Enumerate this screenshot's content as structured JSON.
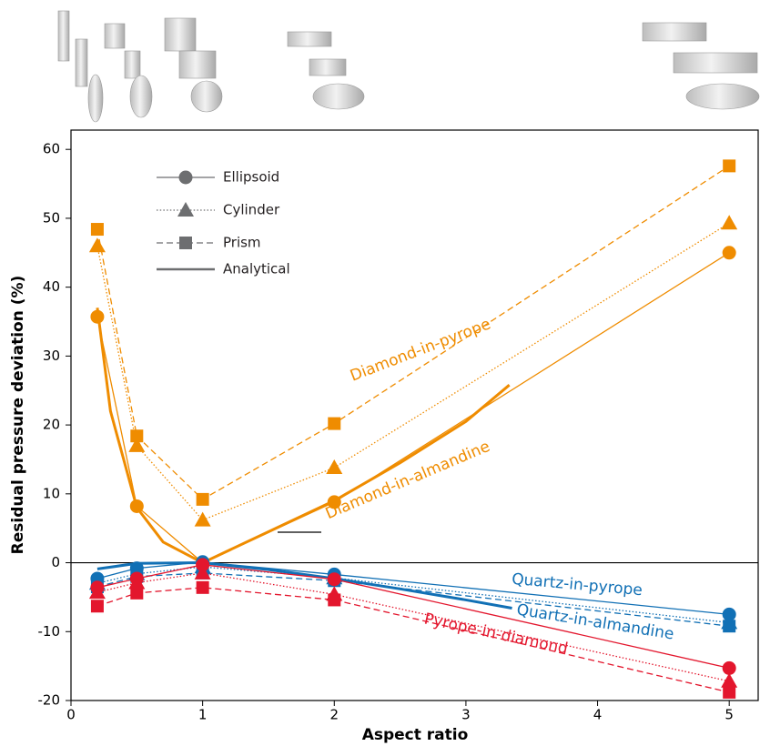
{
  "chart_data": {
    "type": "line",
    "x_label": "Aspect ratio",
    "y_label": "Residual pressure deviation (%)",
    "xlim": [
      0,
      5.22
    ],
    "ylim": [
      -20,
      62.8
    ],
    "xticks": [
      0,
      1,
      2,
      3,
      4,
      5
    ],
    "yticks": [
      -20,
      -10,
      0,
      10,
      20,
      30,
      40,
      50,
      60
    ],
    "legend": {
      "position": "upper left",
      "color": "#6d6e70",
      "entries": [
        {
          "label": "Ellipsoid",
          "marker": "circle",
          "dash": "solid"
        },
        {
          "label": "Cylinder",
          "marker": "triangle",
          "dash": "dotted"
        },
        {
          "label": "Prism",
          "marker": "square",
          "dash": "dashed"
        },
        {
          "label": "Analytical",
          "marker": "none",
          "dash": "thick"
        }
      ]
    },
    "annotations": [
      {
        "text": "Diamond-in-pyrope",
        "color": "#ef8c00"
      },
      {
        "text": "Diamond-in-almandine",
        "color": "#ef8c00"
      },
      {
        "text": "Quartz-in-pyrope",
        "color": "#1170b5"
      },
      {
        "text": "Quartz-in-almandine",
        "color": "#1170b5"
      },
      {
        "text": "Pyrope-in-diamond",
        "color": "#e3162d"
      }
    ],
    "series": [
      {
        "color": "#ef8c00",
        "marker": "circle",
        "dash": "solid",
        "x": [
          0.2,
          0.5,
          1,
          2,
          5
        ],
        "values": [
          35.7,
          8.2,
          0,
          8.8,
          45
        ]
      },
      {
        "color": "#ef8c00",
        "marker": "triangle",
        "dash": "dotted",
        "x": [
          0.2,
          0.5,
          1,
          2,
          5
        ],
        "values": [
          46,
          17,
          6.2,
          13.8,
          49.3
        ]
      },
      {
        "color": "#ef8c00",
        "marker": "square",
        "dash": "dashed",
        "x": [
          0.2,
          0.5,
          1,
          2,
          5
        ],
        "values": [
          48.4,
          18.4,
          9.2,
          20.2,
          57.6
        ]
      },
      {
        "color": "#ef8c00",
        "marker": "none",
        "dash": "thick",
        "x": [
          0.2,
          0.3,
          0.5,
          0.7,
          1,
          1.5,
          2,
          2.5,
          3,
          3.33
        ],
        "values": [
          37,
          22,
          8,
          3,
          0,
          4.5,
          9,
          14.5,
          20.5,
          25.8
        ]
      },
      {
        "color": "#1170b5",
        "marker": "circle",
        "dash": "solid",
        "x": [
          0.2,
          0.5,
          1,
          2,
          5
        ],
        "values": [
          -2.3,
          -0.8,
          0.1,
          -1.7,
          -7.5
        ]
      },
      {
        "color": "#1170b5",
        "marker": "triangle",
        "dash": "dotted",
        "x": [
          0.2,
          0.5,
          1,
          2,
          5
        ],
        "values": [
          -3,
          -1.6,
          -0.6,
          -2.2,
          -8.7
        ]
      },
      {
        "color": "#1170b5",
        "marker": "square",
        "dash": "dashed",
        "x": [
          0.2,
          0.5,
          1,
          2,
          5
        ],
        "values": [
          -3.5,
          -2,
          -1.5,
          -2.6,
          -9.2
        ]
      },
      {
        "color": "#1170b5",
        "marker": "none",
        "dash": "thick",
        "x": [
          0.2,
          0.5,
          1,
          1.5,
          2,
          2.5,
          3,
          3.35
        ],
        "values": [
          -0.9,
          -0.1,
          0,
          -1,
          -2.3,
          -3.8,
          -5.4,
          -6.6
        ]
      },
      {
        "color": "#e3162d",
        "marker": "circle",
        "dash": "solid",
        "x": [
          0.2,
          0.5,
          1,
          2,
          5
        ],
        "values": [
          -3.6,
          -2.3,
          -0.3,
          -2.4,
          -15.3
        ]
      },
      {
        "color": "#e3162d",
        "marker": "triangle",
        "dash": "dotted",
        "x": [
          0.2,
          0.5,
          1,
          2,
          5
        ],
        "values": [
          -4.3,
          -2.9,
          -1.5,
          -4.6,
          -17.2
        ]
      },
      {
        "color": "#e3162d",
        "marker": "square",
        "dash": "dashed",
        "x": [
          0.2,
          0.5,
          1,
          2,
          5
        ],
        "values": [
          -6.3,
          -4.4,
          -3.6,
          -5.4,
          -18.8
        ]
      }
    ]
  }
}
